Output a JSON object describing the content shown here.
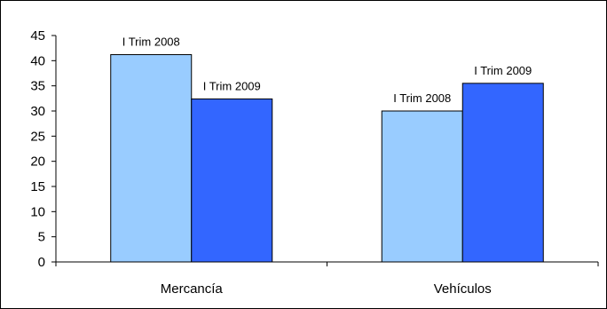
{
  "chart_data": {
    "type": "bar",
    "title": "",
    "xlabel": "",
    "ylabel": "",
    "categories": [
      "Mercancía",
      "Vehículos"
    ],
    "series": [
      {
        "values": [
          41.2,
          30
        ],
        "labels": [
          "I Trim 2008",
          "I Trim 2008"
        ],
        "color": "#99ccff"
      },
      {
        "values": [
          32.4,
          35.5
        ],
        "labels": [
          "I Trim 2009",
          "I Trim 2009"
        ],
        "color": "#3366ff"
      }
    ],
    "ylim": [
      0,
      45
    ],
    "yticks": [
      "0",
      "5",
      "10",
      "15",
      "20",
      "25",
      "30",
      "35",
      "40",
      "45"
    ],
    "grid": false,
    "legend": "none",
    "frame_color": "#000000"
  }
}
